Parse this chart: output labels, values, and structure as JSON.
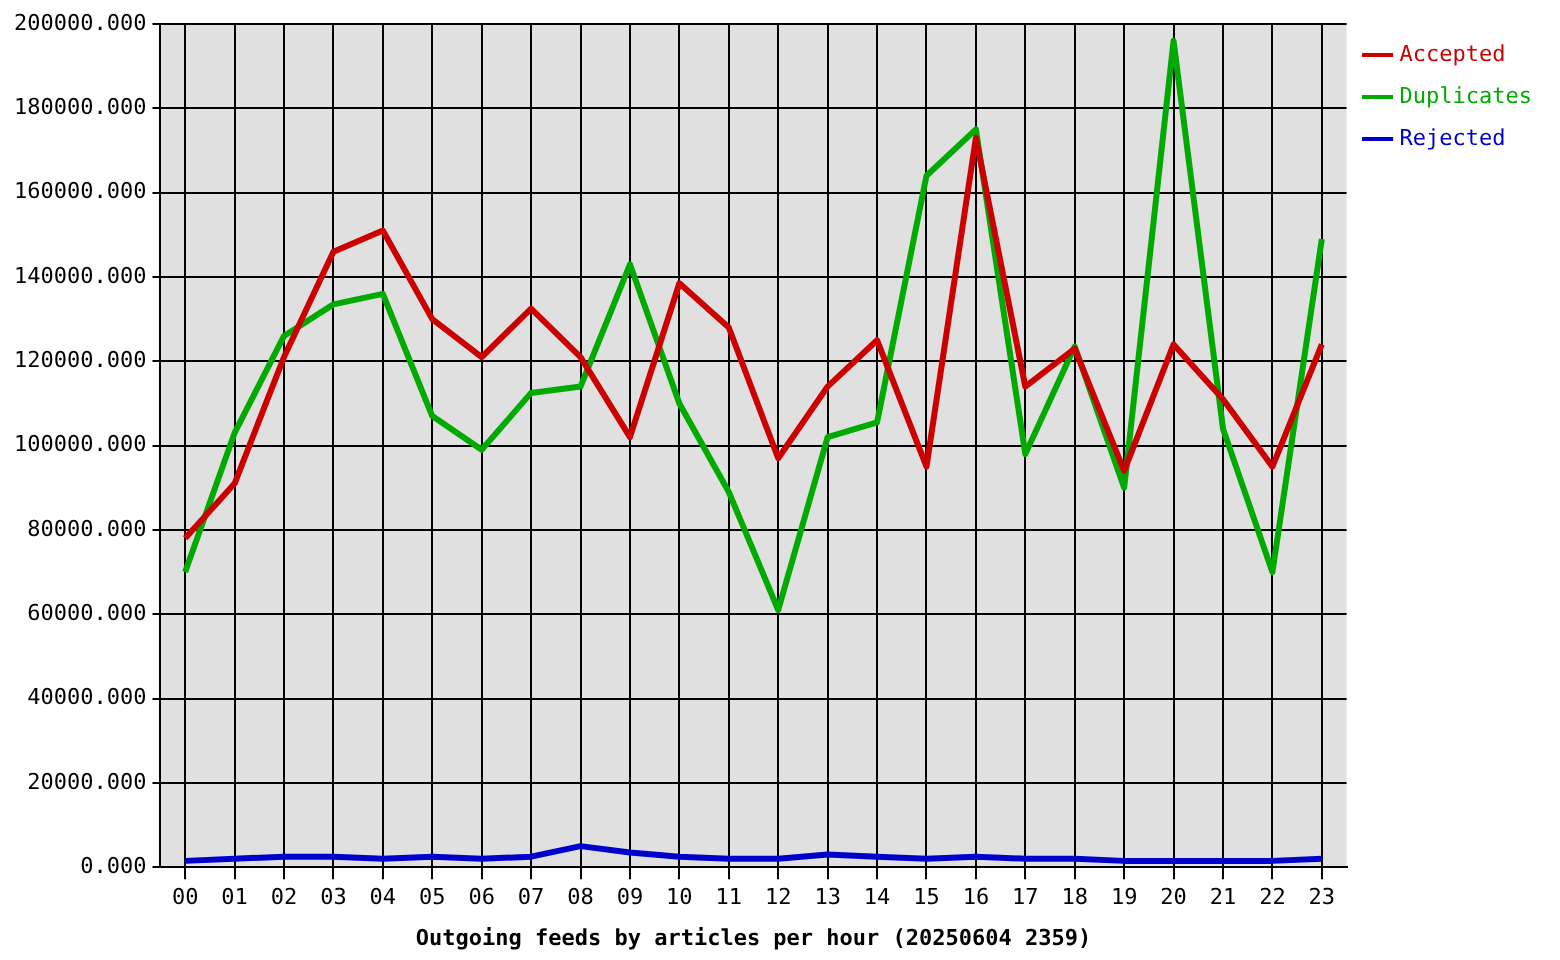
{
  "chart_data": {
    "type": "line",
    "xlabel": "Outgoing feeds by articles per hour (20250604 2359)",
    "categories": [
      "00",
      "01",
      "02",
      "03",
      "04",
      "05",
      "06",
      "07",
      "08",
      "09",
      "10",
      "11",
      "12",
      "13",
      "14",
      "15",
      "16",
      "17",
      "18",
      "19",
      "20",
      "21",
      "22",
      "23"
    ],
    "series": [
      {
        "name": "Accepted",
        "color": "#cc0000",
        "values": [
          78000,
          91000,
          121000,
          146000,
          151000,
          130000,
          121000,
          132500,
          121000,
          102000,
          138500,
          128000,
          97000,
          114000,
          125000,
          95000,
          173000,
          114000,
          123000,
          94000,
          124000,
          111000,
          95000,
          124000
        ]
      },
      {
        "name": "Duplicates",
        "color": "#00aa00",
        "values": [
          70000,
          103000,
          126000,
          133500,
          136000,
          107000,
          99000,
          112500,
          114000,
          143000,
          110000,
          89000,
          61000,
          102000,
          105500,
          164000,
          175000,
          98000,
          123500,
          90000,
          196000,
          104000,
          70000,
          149000
        ]
      },
      {
        "name": "Rejected",
        "color": "#0000cc",
        "values": [
          1500,
          2000,
          2500,
          2500,
          2000,
          2500,
          2000,
          2500,
          5000,
          3500,
          2500,
          2000,
          2000,
          3000,
          2500,
          2000,
          2500,
          2000,
          2000,
          1500,
          1500,
          1500,
          1500,
          2000
        ]
      }
    ],
    "ylim": [
      0,
      200000
    ],
    "yticks": [
      {
        "value": 0,
        "label": "0.000"
      },
      {
        "value": 20000,
        "label": "20000.000"
      },
      {
        "value": 40000,
        "label": "40000.000"
      },
      {
        "value": 60000,
        "label": "60000.000"
      },
      {
        "value": 80000,
        "label": "80000.000"
      },
      {
        "value": 100000,
        "label": "100000.000"
      },
      {
        "value": 120000,
        "label": "120000.000"
      },
      {
        "value": 140000,
        "label": "140000.000"
      },
      {
        "value": 160000,
        "label": "160000.000"
      },
      {
        "value": 180000,
        "label": "180000.000"
      },
      {
        "value": 200000,
        "label": "200000.000"
      }
    ],
    "grid": true,
    "legend": "top right",
    "marker": "none"
  }
}
